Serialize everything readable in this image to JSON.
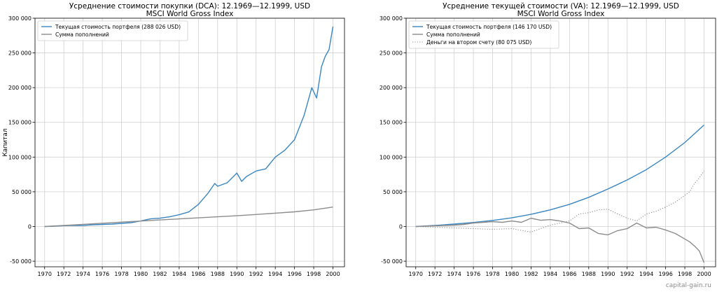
{
  "watermark": "capital-gain.ru",
  "colors": {
    "portfolio": "#3a86c0",
    "contrib": "#8c8c8c",
    "cash": "#8c8c8c",
    "grid": "#d0d0d0",
    "axis": "#000000"
  },
  "chart_data": [
    {
      "type": "line",
      "title": "Усреднение стоимости покупки (DCA): 12.1969—12.1999, USD",
      "subtitle": "MSCI World Gross Index",
      "ylabel": "Капитал",
      "xlim": [
        1969.0,
        2001.2
      ],
      "ylim": [
        -58000,
        300000
      ],
      "yticks": [
        -50000,
        0,
        50000,
        100000,
        150000,
        200000,
        250000,
        300000
      ],
      "ytick_labels": [
        "-50 000",
        "0",
        "50 000",
        "100 000",
        "150 000",
        "200 000",
        "250 000",
        "300 000"
      ],
      "xticks": [
        1970,
        1972,
        1974,
        1976,
        1978,
        1980,
        1982,
        1984,
        1986,
        1988,
        1990,
        1992,
        1994,
        1996,
        1998,
        2000
      ],
      "xtick_labels": [
        "1970",
        "1972",
        "1974",
        "1976",
        "1978",
        "1980",
        "1982",
        "1984",
        "1986",
        "1988",
        "1990",
        "1992",
        "1994",
        "1996",
        "1998",
        "2000"
      ],
      "grid": true,
      "legend_position": "top-left",
      "series": [
        {
          "name": "Текущая стоимость портфеля (288 026 USD)",
          "style": "solid",
          "color": "#3a86c0",
          "points": [
            [
              1970,
              0
            ],
            [
              1971,
              500
            ],
            [
              1972,
              1200
            ],
            [
              1973,
              1600
            ],
            [
              1974,
              1400
            ],
            [
              1975,
              2500
            ],
            [
              1976,
              3000
            ],
            [
              1977,
              3500
            ],
            [
              1978,
              4500
            ],
            [
              1979,
              5500
            ],
            [
              1980,
              8000
            ],
            [
              1981,
              11000
            ],
            [
              1982,
              12000
            ],
            [
              1983,
              14000
            ],
            [
              1984,
              17000
            ],
            [
              1985,
              21000
            ],
            [
              1986,
              32000
            ],
            [
              1987,
              48000
            ],
            [
              1987.7,
              62000
            ],
            [
              1988,
              58000
            ],
            [
              1989,
              63000
            ],
            [
              1990,
              77000
            ],
            [
              1990.5,
              65000
            ],
            [
              1991,
              72000
            ],
            [
              1992,
              80000
            ],
            [
              1993,
              83000
            ],
            [
              1994,
              100000
            ],
            [
              1995,
              110000
            ],
            [
              1996,
              125000
            ],
            [
              1997,
              160000
            ],
            [
              1997.8,
              200000
            ],
            [
              1998.3,
              185000
            ],
            [
              1998.8,
              230000
            ],
            [
              1999.2,
              245000
            ],
            [
              1999.6,
              255000
            ],
            [
              2000,
              288026
            ]
          ]
        },
        {
          "name": "Сумма пополнений",
          "style": "solid",
          "color": "#8c8c8c",
          "points": [
            [
              1970,
              0
            ],
            [
              1972,
              1500
            ],
            [
              1974,
              3100
            ],
            [
              1976,
              4700
            ],
            [
              1978,
              6300
            ],
            [
              1980,
              7900
            ],
            [
              1982,
              9500
            ],
            [
              1984,
              11000
            ],
            [
              1986,
              12500
            ],
            [
              1988,
              14000
            ],
            [
              1990,
              15500
            ],
            [
              1992,
              17300
            ],
            [
              1994,
              19200
            ],
            [
              1996,
              21200
            ],
            [
              1998,
              24000
            ],
            [
              2000,
              28000
            ]
          ]
        }
      ]
    },
    {
      "type": "line",
      "title": "Усреднение текущей стоимости (VA): 12.1969—12.1999, USD",
      "subtitle": "MSCI World Gross Index",
      "ylabel": "",
      "xlim": [
        1969.0,
        2001.2
      ],
      "ylim": [
        -58000,
        300000
      ],
      "yticks": [
        -50000,
        0,
        50000,
        100000,
        150000,
        200000,
        250000,
        300000
      ],
      "ytick_labels": [
        "-50 000",
        "0",
        "50 000",
        "100 000",
        "150 000",
        "200 000",
        "250 000",
        "300 000"
      ],
      "xticks": [
        1970,
        1972,
        1974,
        1976,
        1978,
        1980,
        1982,
        1984,
        1986,
        1988,
        1990,
        1992,
        1994,
        1996,
        1998,
        2000
      ],
      "xtick_labels": [
        "1970",
        "1972",
        "1974",
        "1976",
        "1978",
        "1980",
        "1982",
        "1984",
        "1986",
        "1988",
        "1990",
        "1992",
        "1994",
        "1996",
        "1998",
        "2000"
      ],
      "grid": true,
      "legend_position": "top-left",
      "series": [
        {
          "name": "Текущая стоимость портфеля (146 170 USD)",
          "style": "solid",
          "color": "#3a86c0",
          "points": [
            [
              1970,
              0
            ],
            [
              1972,
              1500
            ],
            [
              1974,
              3500
            ],
            [
              1976,
              5800
            ],
            [
              1978,
              8800
            ],
            [
              1980,
              12500
            ],
            [
              1982,
              17500
            ],
            [
              1984,
              24000
            ],
            [
              1986,
              32000
            ],
            [
              1988,
              42000
            ],
            [
              1990,
              54000
            ],
            [
              1992,
              67000
            ],
            [
              1994,
              82000
            ],
            [
              1996,
              100000
            ],
            [
              1998,
              121000
            ],
            [
              2000,
              146170
            ]
          ]
        },
        {
          "name": "Сумма пополнений",
          "style": "solid",
          "color": "#8c8c8c",
          "points": [
            [
              1970,
              0
            ],
            [
              1972,
              1000
            ],
            [
              1974,
              2000
            ],
            [
              1975,
              3000
            ],
            [
              1976,
              5000
            ],
            [
              1977,
              6000
            ],
            [
              1978,
              7000
            ],
            [
              1979,
              6000
            ],
            [
              1980,
              8000
            ],
            [
              1981,
              6000
            ],
            [
              1982,
              12000
            ],
            [
              1983,
              9000
            ],
            [
              1984,
              10000
            ],
            [
              1985,
              8000
            ],
            [
              1986,
              5000
            ],
            [
              1987,
              -3000
            ],
            [
              1988,
              -2000
            ],
            [
              1989,
              -10000
            ],
            [
              1990,
              -12000
            ],
            [
              1991,
              -6000
            ],
            [
              1992,
              -3000
            ],
            [
              1993,
              5000
            ],
            [
              1994,
              -2000
            ],
            [
              1995,
              -1000
            ],
            [
              1996,
              -5000
            ],
            [
              1997,
              -10000
            ],
            [
              1998,
              -18000
            ],
            [
              1998.5,
              -22000
            ],
            [
              1999,
              -28000
            ],
            [
              1999.5,
              -35000
            ],
            [
              2000,
              -52000
            ]
          ]
        },
        {
          "name": "Деньги на втором счету (80 075 USD)",
          "style": "dotted",
          "color": "#8c8c8c",
          "points": [
            [
              1970,
              0
            ],
            [
              1972,
              -1000
            ],
            [
              1974,
              -2000
            ],
            [
              1976,
              -3000
            ],
            [
              1978,
              -4000
            ],
            [
              1980,
              -3000
            ],
            [
              1982,
              -8000
            ],
            [
              1984,
              2000
            ],
            [
              1986,
              8000
            ],
            [
              1987,
              18000
            ],
            [
              1988,
              20000
            ],
            [
              1989,
              24000
            ],
            [
              1990,
              25000
            ],
            [
              1991,
              18000
            ],
            [
              1992,
              12000
            ],
            [
              1993,
              8000
            ],
            [
              1994,
              18000
            ],
            [
              1995,
              22000
            ],
            [
              1996,
              28000
            ],
            [
              1997,
              35000
            ],
            [
              1998,
              45000
            ],
            [
              1998.5,
              50000
            ],
            [
              1999,
              62000
            ],
            [
              1999.5,
              70000
            ],
            [
              2000,
              80075
            ]
          ]
        }
      ]
    }
  ]
}
